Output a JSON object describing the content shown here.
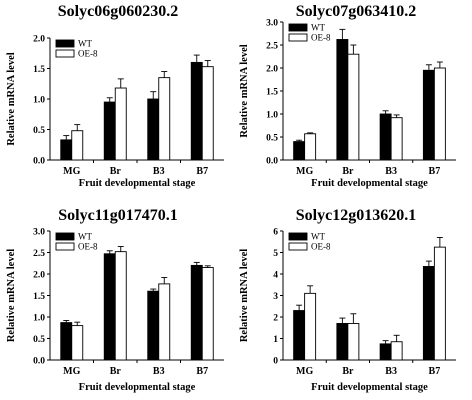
{
  "chart_data": [
    {
      "type": "bar",
      "title": "Solyc06g060230.2",
      "xlabel": "Fruit developmental stage",
      "ylabel": "Relative mRNA level",
      "categories": [
        "MG",
        "Br",
        "B3",
        "B7"
      ],
      "ylim": [
        0,
        2.0
      ],
      "yticks": [
        "0.0",
        "0.5",
        "1.0",
        "1.5",
        "2.0"
      ],
      "legend_position": "top-left",
      "series": [
        {
          "name": "WT",
          "color": "#000000",
          "values": [
            0.33,
            0.95,
            1.0,
            1.6
          ],
          "errors": [
            0.07,
            0.07,
            0.12,
            0.12
          ]
        },
        {
          "name": "OE-8",
          "color": "#ffffff",
          "values": [
            0.48,
            1.18,
            1.35,
            1.53
          ],
          "errors": [
            0.1,
            0.15,
            0.1,
            0.1
          ]
        }
      ]
    },
    {
      "type": "bar",
      "title": "Solyc07g063410.2",
      "xlabel": "Fruit developmental stage",
      "ylabel": "Relative mRNA level",
      "categories": [
        "MG",
        "Br",
        "B3",
        "B7"
      ],
      "ylim": [
        0,
        3.0
      ],
      "yticks": [
        "0.0",
        "0.5",
        "1.0",
        "1.5",
        "2.0",
        "2.5",
        "3.0"
      ],
      "legend_position": "top-left",
      "series": [
        {
          "name": "WT",
          "color": "#000000",
          "values": [
            0.4,
            2.62,
            1.0,
            1.95
          ],
          "errors": [
            0.03,
            0.22,
            0.07,
            0.12
          ]
        },
        {
          "name": "OE-8",
          "color": "#ffffff",
          "values": [
            0.57,
            2.3,
            0.92,
            2.0
          ],
          "errors": [
            0.02,
            0.2,
            0.06,
            0.13
          ]
        }
      ]
    },
    {
      "type": "bar",
      "title": "Solyc11g017470.1",
      "xlabel": "Fruit developmental stage",
      "ylabel": "Relative mRNA level",
      "categories": [
        "MG",
        "Br",
        "B3",
        "B7"
      ],
      "ylim": [
        0,
        3.0
      ],
      "yticks": [
        "0.0",
        "0.5",
        "1.0",
        "1.5",
        "2.0",
        "2.5",
        "3.0"
      ],
      "legend_position": "top-left",
      "series": [
        {
          "name": "WT",
          "color": "#000000",
          "values": [
            0.87,
            2.47,
            1.6,
            2.2
          ],
          "errors": [
            0.05,
            0.07,
            0.05,
            0.07
          ]
        },
        {
          "name": "OE-8",
          "color": "#ffffff",
          "values": [
            0.8,
            2.52,
            1.77,
            2.15
          ],
          "errors": [
            0.08,
            0.12,
            0.15,
            0.04
          ]
        }
      ]
    },
    {
      "type": "bar",
      "title": "Solyc12g013620.1",
      "xlabel": "Fruit developmental stage",
      "ylabel": "Relative mRNA level",
      "categories": [
        "MG",
        "Br",
        "B3",
        "B7"
      ],
      "ylim": [
        0,
        6
      ],
      "yticks": [
        "0",
        "1",
        "2",
        "3",
        "4",
        "5",
        "6"
      ],
      "legend_position": "top-left",
      "series": [
        {
          "name": "WT",
          "color": "#000000",
          "values": [
            2.3,
            1.7,
            0.75,
            4.35
          ],
          "errors": [
            0.25,
            0.25,
            0.15,
            0.25
          ]
        },
        {
          "name": "OE-8",
          "color": "#ffffff",
          "values": [
            3.1,
            1.7,
            0.85,
            5.25
          ],
          "errors": [
            0.35,
            0.45,
            0.3,
            0.45
          ]
        }
      ]
    }
  ]
}
